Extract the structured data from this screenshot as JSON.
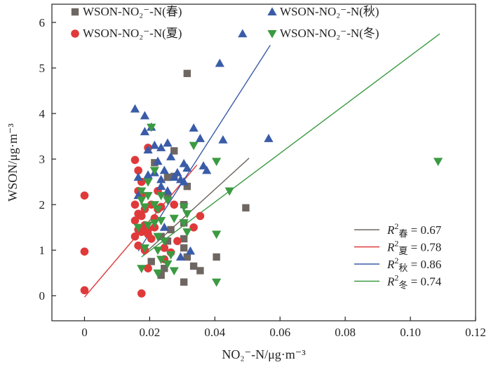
{
  "chart_data": {
    "type": "scatter",
    "xlabel": "NO₂⁻-N/μg·m⁻³",
    "ylabel": "WSON/μg·m⁻³",
    "xlim": [
      -0.01,
      0.12
    ],
    "ylim": [
      -0.55,
      6.4
    ],
    "x_ticks": [
      0,
      0.02,
      0.04,
      0.06,
      0.08,
      0.1,
      0.12
    ],
    "x_tick_labels": [
      "0",
      "0.02",
      "0.04",
      "0.06",
      "0.08",
      "0.10",
      "0.12"
    ],
    "y_ticks": [
      0,
      1,
      2,
      3,
      4,
      5,
      6
    ],
    "y_tick_labels": [
      "0",
      "1",
      "2",
      "3",
      "4",
      "5",
      "6"
    ],
    "grid": false,
    "legend_placement": "top",
    "fit_legend_placement": "bottom-right",
    "series": [
      {
        "name": "WSON-NO₂⁻-N(春)",
        "marker": "square",
        "color": "#6e6661",
        "points": [
          [
            0.0315,
            4.88
          ],
          [
            0.0495,
            1.93
          ],
          [
            0.0215,
            2.92
          ],
          [
            0.0275,
            3.18
          ],
          [
            0.0255,
            2.6
          ],
          [
            0.0275,
            2.62
          ],
          [
            0.0255,
            2.2
          ],
          [
            0.0305,
            2.0
          ],
          [
            0.0315,
            2.4
          ],
          [
            0.0305,
            1.6
          ],
          [
            0.0265,
            1.45
          ],
          [
            0.0235,
            1.3
          ],
          [
            0.0305,
            1.05
          ],
          [
            0.0315,
            0.85
          ],
          [
            0.0245,
            0.6
          ],
          [
            0.0205,
            0.75
          ],
          [
            0.0235,
            0.45
          ],
          [
            0.0305,
            0.3
          ],
          [
            0.0335,
            0.65
          ],
          [
            0.0355,
            0.55
          ],
          [
            0.0405,
            0.85
          ],
          [
            0.0305,
            1.25
          ],
          [
            0.0255,
            1.2
          ]
        ]
      },
      {
        "name": "WSON-NO₂⁻-N(夏)",
        "marker": "circle",
        "color": "#e0393a",
        "points": [
          [
            0,
            2.2
          ],
          [
            0,
            0.97
          ],
          [
            0,
            0.12
          ],
          [
            0.0175,
            0.05
          ],
          [
            0.0155,
            2.98
          ],
          [
            0.0195,
            3.25
          ],
          [
            0.0165,
            2.75
          ],
          [
            0.0175,
            2.5
          ],
          [
            0.0165,
            2.3
          ],
          [
            0.0175,
            2.2
          ],
          [
            0.0155,
            2.0
          ],
          [
            0.0185,
            1.9
          ],
          [
            0.0165,
            1.8
          ],
          [
            0.0175,
            1.75
          ],
          [
            0.0155,
            1.65
          ],
          [
            0.0185,
            1.55
          ],
          [
            0.0165,
            1.45
          ],
          [
            0.0175,
            1.4
          ],
          [
            0.0195,
            1.35
          ],
          [
            0.0155,
            1.3
          ],
          [
            0.0215,
            1.7
          ],
          [
            0.0205,
            2.0
          ],
          [
            0.0225,
            2.3
          ],
          [
            0.0185,
            1.0
          ],
          [
            0.0165,
            1.1
          ],
          [
            0.0195,
            0.6
          ],
          [
            0.0245,
            0.8
          ],
          [
            0.0265,
            0.95
          ],
          [
            0.0285,
            1.2
          ],
          [
            0.0335,
            1.5
          ],
          [
            0.0355,
            1.75
          ],
          [
            0.0235,
            1.95
          ],
          [
            0.0275,
            2.0
          ],
          [
            0.0245,
            1.05
          ],
          [
            0.0205,
            1.25
          ],
          [
            0.0215,
            1.5
          ],
          [
            0.0225,
            1.9
          ],
          [
            0.0195,
            1.45
          ]
        ]
      },
      {
        "name": "WSON-NO₂⁻-N(秋)",
        "marker": "triangle-up",
        "color": "#3a5ca8",
        "points": [
          [
            0.0485,
            5.75
          ],
          [
            0.0415,
            5.1
          ],
          [
            0.0565,
            3.45
          ],
          [
            0.0155,
            4.1
          ],
          [
            0.0185,
            3.95
          ],
          [
            0.0205,
            3.7
          ],
          [
            0.0185,
            3.6
          ],
          [
            0.0335,
            3.68
          ],
          [
            0.0355,
            3.45
          ],
          [
            0.0425,
            3.42
          ],
          [
            0.0255,
            3.35
          ],
          [
            0.0235,
            3.25
          ],
          [
            0.0215,
            3.3
          ],
          [
            0.0195,
            3.2
          ],
          [
            0.0265,
            3.05
          ],
          [
            0.0225,
            2.95
          ],
          [
            0.0305,
            2.9
          ],
          [
            0.0315,
            2.8
          ],
          [
            0.0365,
            2.85
          ],
          [
            0.0375,
            2.75
          ],
          [
            0.0245,
            2.75
          ],
          [
            0.0215,
            2.7
          ],
          [
            0.0195,
            2.65
          ],
          [
            0.0165,
            2.6
          ],
          [
            0.0275,
            2.6
          ],
          [
            0.0295,
            2.55
          ],
          [
            0.0305,
            2.5
          ],
          [
            0.0235,
            2.4
          ],
          [
            0.0255,
            2.3
          ],
          [
            0.0165,
            2.2
          ],
          [
            0.0245,
            1.5
          ],
          [
            0.0325,
            0.98
          ],
          [
            0.0295,
            0.85
          ],
          [
            0.0235,
            2.55
          ],
          [
            0.0285,
            2.7
          ]
        ]
      },
      {
        "name": "WSON-NO₂⁻-N(冬)",
        "marker": "triangle-down",
        "color": "#3b9a42",
        "points": [
          [
            0.1085,
            2.95
          ],
          [
            0.0205,
            3.7
          ],
          [
            0.0335,
            3.3
          ],
          [
            0.0405,
            2.95
          ],
          [
            0.0445,
            2.3
          ],
          [
            0.0405,
            1.35
          ],
          [
            0.0405,
            0.3
          ],
          [
            0.0215,
            2.75
          ],
          [
            0.0195,
            2.5
          ],
          [
            0.0175,
            2.3
          ],
          [
            0.0195,
            2.2
          ],
          [
            0.0175,
            2.1
          ],
          [
            0.0215,
            2.0
          ],
          [
            0.0185,
            1.95
          ],
          [
            0.0225,
            1.9
          ],
          [
            0.0255,
            2.1
          ],
          [
            0.0235,
            2.2
          ],
          [
            0.0305,
            1.95
          ],
          [
            0.0315,
            1.8
          ],
          [
            0.0275,
            1.7
          ],
          [
            0.0235,
            1.65
          ],
          [
            0.0215,
            1.6
          ],
          [
            0.0195,
            1.55
          ],
          [
            0.0165,
            1.5
          ],
          [
            0.0225,
            1.3
          ],
          [
            0.0245,
            1.2
          ],
          [
            0.0185,
            1.05
          ],
          [
            0.0225,
            1.0
          ],
          [
            0.0235,
            0.8
          ],
          [
            0.0255,
            0.7
          ],
          [
            0.0275,
            0.55
          ],
          [
            0.0175,
            0.6
          ],
          [
            0.0225,
            0.5
          ],
          [
            0.0315,
            1.4
          ],
          [
            0.0305,
            1.6
          ],
          [
            0.0265,
            0.9
          ]
        ]
      }
    ],
    "fits": [
      {
        "label_base": "R",
        "label_sup": "2",
        "label_sub": "春",
        "label_value": " = 0.67",
        "color": "#6e6661",
        "x0": 0.018,
        "y0": 0.9,
        "x1": 0.0505,
        "y1": 3.02
      },
      {
        "label_base": "R",
        "label_sup": "2",
        "label_sub": "夏",
        "label_value": " = 0.78",
        "color": "#e0393a",
        "x0": 0,
        "y0": -0.03,
        "x1": 0.0345,
        "y1": 2.87
      },
      {
        "label_base": "R",
        "label_sup": "2",
        "label_sub": "秋",
        "label_value": " = 0.86",
        "color": "#3a5ca8",
        "x0": 0.0165,
        "y0": 0.98,
        "x1": 0.057,
        "y1": 5.5
      },
      {
        "label_base": "R",
        "label_sup": "2",
        "label_sub": "冬",
        "label_value": " = 0.74",
        "color": "#3b9a42",
        "x0": 0.0175,
        "y0": 0.85,
        "x1": 0.109,
        "y1": 5.75
      }
    ]
  }
}
